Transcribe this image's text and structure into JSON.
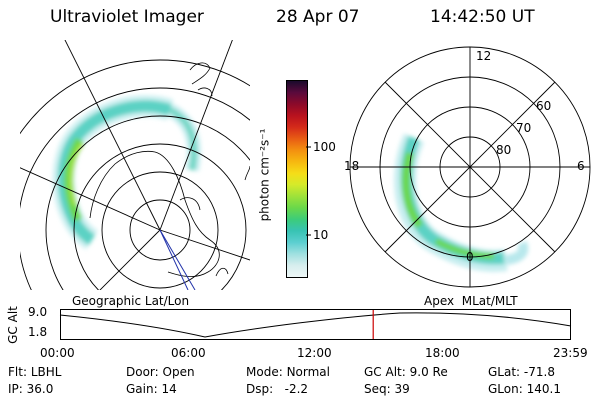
{
  "header": {
    "instrument": "Ultraviolet Imager",
    "date": "28 Apr 07",
    "time": "14:42:50 UT"
  },
  "geo_panel": {
    "label": "Geographic Lat/Lon"
  },
  "apex_panel": {
    "label": "Apex  MLat/MLT",
    "mlt_labels": {
      "top": "12",
      "left": "18",
      "right": "6",
      "bottom": "0"
    },
    "mlat_labels": [
      "60",
      "70",
      "80"
    ]
  },
  "colorbar": {
    "unit_label": "photon cm⁻²s⁻¹",
    "tick_100": "100",
    "tick_10": "10",
    "colors": [
      "#eef7f7",
      "#d7eeee",
      "#9fe0e0",
      "#5ccfd0",
      "#38c3b4",
      "#3ccc7a",
      "#6ad84a",
      "#9ee23a",
      "#d5ea2a",
      "#f5dd18",
      "#f6b810",
      "#f39010",
      "#e85c14",
      "#d42a1a",
      "#b8121e",
      "#8c0a2a",
      "#5a0a3c",
      "#1a0a2c"
    ]
  },
  "altitude_plot": {
    "ylabel": "GC Alt",
    "y_high": "9.0",
    "y_low": "1.8",
    "x_ticks": [
      "00:00",
      "06:00",
      "12:00",
      "18:00",
      "23:59"
    ],
    "current_marker_hour": 14.71,
    "marker_color": "#cc0000"
  },
  "footer": {
    "filter": {
      "label": "Flt:",
      "value": "LBHL"
    },
    "ip": {
      "label": "IP:",
      "value": "36.0"
    },
    "door": {
      "label": "Door:",
      "value": "Open"
    },
    "gain": {
      "label": "Gain:",
      "value": "14"
    },
    "mode": {
      "label": "Mode:",
      "value": "Normal"
    },
    "dsp": {
      "label": "Dsp:",
      "value": "-2.2"
    },
    "gc_alt": {
      "label": "GC Alt:",
      "value": "9.0 Re"
    },
    "seq": {
      "label": "Seq:",
      "value": "39"
    },
    "glat": {
      "label": "GLat:",
      "value": "-71.8"
    },
    "glon": {
      "label": "GLon:",
      "value": "140.1"
    }
  }
}
